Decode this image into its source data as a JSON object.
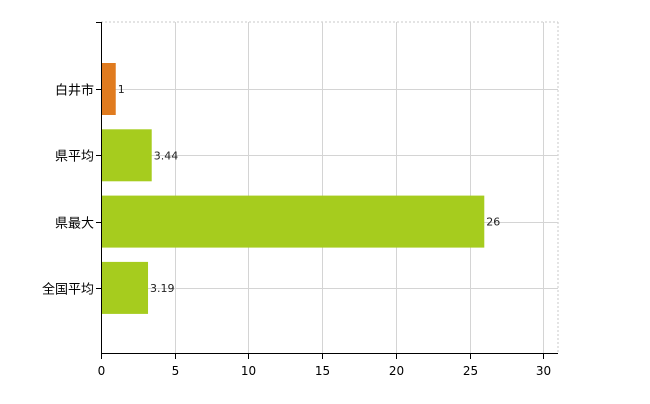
{
  "chart_data": {
    "type": "bar",
    "orientation": "horizontal",
    "categories": [
      "白井市",
      "県平均",
      "県最大",
      "全国平均"
    ],
    "values": [
      1,
      3.44,
      26,
      3.19
    ],
    "value_labels": [
      "1",
      "3.44",
      "26",
      "3.19"
    ],
    "bar_colors": [
      "#e07b1f",
      "#a6cc1e",
      "#a6cc1e",
      "#a6cc1e"
    ],
    "xlim": [
      0,
      31
    ],
    "xticks": [
      0,
      5,
      10,
      15,
      20,
      25,
      30
    ],
    "grid": true
  }
}
